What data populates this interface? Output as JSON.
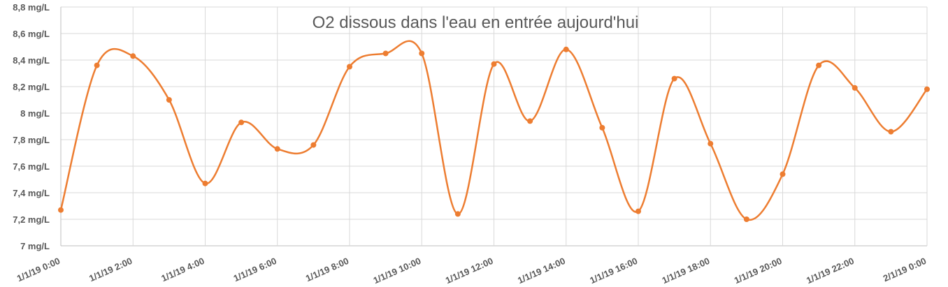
{
  "chart_data": {
    "type": "line",
    "title": "O2 dissous dans l'eau en entrée aujourd'hui",
    "xlabel": "",
    "ylabel": "",
    "ylim": [
      7,
      8.8
    ],
    "y_tick_labels": [
      "7 mg/L",
      "7,2 mg/L",
      "7,4 mg/L",
      "7,6 mg/L",
      "7,8 mg/L",
      "8 mg/L",
      "8,2 mg/L",
      "8,4 mg/L",
      "8,6 mg/L",
      "8,8 mg/L"
    ],
    "x_tick_labels": [
      "1/1/19 0:00",
      "1/1/19 2:00",
      "1/1/19 4:00",
      "1/1/19 6:00",
      "1/1/19 8:00",
      "1/1/19 10:00",
      "1/1/19 12:00",
      "1/1/19 14:00",
      "1/1/19 16:00",
      "1/1/19 18:00",
      "1/1/19 20:00",
      "1/1/19 22:00",
      "2/1/19 0:00"
    ],
    "x": [
      "1/1/19 0:00",
      "1/1/19 1:00",
      "1/1/19 2:00",
      "1/1/19 3:00",
      "1/1/19 4:00",
      "1/1/19 5:00",
      "1/1/19 6:00",
      "1/1/19 7:00",
      "1/1/19 8:00",
      "1/1/19 9:00",
      "1/1/19 10:00",
      "1/1/19 11:00",
      "1/1/19 12:00",
      "1/1/19 13:00",
      "1/1/19 14:00",
      "1/1/19 15:00",
      "1/1/19 16:00",
      "1/1/19 17:00",
      "1/1/19 18:00",
      "1/1/19 19:00",
      "1/1/19 20:00",
      "1/1/19 21:00",
      "1/1/19 22:00",
      "1/1/19 23:00",
      "2/1/19 0:00"
    ],
    "series": [
      {
        "values": [
          7.27,
          8.36,
          8.43,
          8.1,
          7.47,
          7.93,
          7.73,
          7.76,
          8.35,
          8.45,
          8.45,
          7.24,
          8.37,
          7.94,
          8.48,
          7.89,
          7.26,
          8.26,
          7.77,
          7.2,
          7.54,
          8.36,
          8.19,
          7.86,
          8.18
        ],
        "color": "#ed7d31"
      }
    ],
    "grid": true,
    "legend": "none"
  }
}
